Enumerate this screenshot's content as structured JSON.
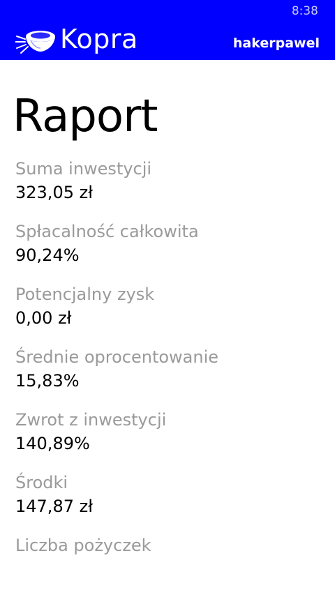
{
  "status_bar": {
    "time": "8:38"
  },
  "header": {
    "logo_icon": "kopra-bowl-logo-icon",
    "app_name": "Kopra",
    "user": "hakerpawel",
    "background_color": "#0000ff"
  },
  "page": {
    "title": "Raport"
  },
  "report": {
    "items": [
      {
        "label": "Suma inwestycji",
        "value": "323,05 zł"
      },
      {
        "label": "Spłacalność całkowita",
        "value": "90,24%"
      },
      {
        "label": "Potencjalny zysk",
        "value": "0,00 zł"
      },
      {
        "label": "Średnie oprocentowanie",
        "value": "15,83%"
      },
      {
        "label": "Zwrot z inwestycji",
        "value": "140,89%"
      },
      {
        "label": "Środki",
        "value": "147,87 zł"
      },
      {
        "label": "Liczba pożyczek"
      }
    ]
  }
}
